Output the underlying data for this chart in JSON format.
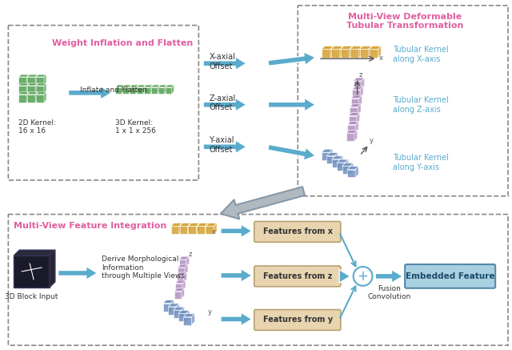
{
  "fig_width": 6.4,
  "fig_height": 4.37,
  "bg_color": "#ffffff",
  "title_top_right": "Multi-View Deformable\nTubular Transformation",
  "title_top_right_color": "#e060a0",
  "title_top_left": "Weight Inflation and Flatten",
  "title_top_left_color": "#e060a0",
  "title_bottom_left": "Multi-View Feature Integration",
  "title_bottom_left_color": "#e060a0",
  "box_border_color": "#888888",
  "arrow_color": "#5aabcc",
  "kernel_x_label": "Tubular Kernel\nalong X-axis",
  "kernel_z_label": "Tubular Kernel\nalong Z-axis",
  "kernel_y_label": "Tubular Kernel\nalong Y-axis",
  "kernel_label_color": "#5aabcc",
  "label_2d": "2D Kernel:\n16 x 16",
  "label_3d": "3D Kernel:\n1 x 1 x 256",
  "inflate_label": "Inflate and Flatten",
  "offset_x": "X-axial\nOffset",
  "offset_z": "Z-axial\nOffset",
  "offset_y": "Y-axial\nOffset",
  "feat_x": "Features from x",
  "feat_z": "Features from z",
  "feat_y": "Features from y",
  "embedded": "Embedded Feature",
  "fusion": "Fusion\nConvolution",
  "block_input": "3D Block Input",
  "derive_label": "Derive Morphological\nInformation\nthrough Multiple Views",
  "feat_box_color": "#e8d5b0",
  "feat_box_edge": "#b8a070",
  "embedded_box_color": "#a8d0e0",
  "embedded_box_edge": "#5588aa",
  "orange_cube_color": "#d4a030",
  "purple_cube_color": "#b090c0",
  "blue_cube_color": "#7090c0",
  "green_cube_color": "#50a050"
}
